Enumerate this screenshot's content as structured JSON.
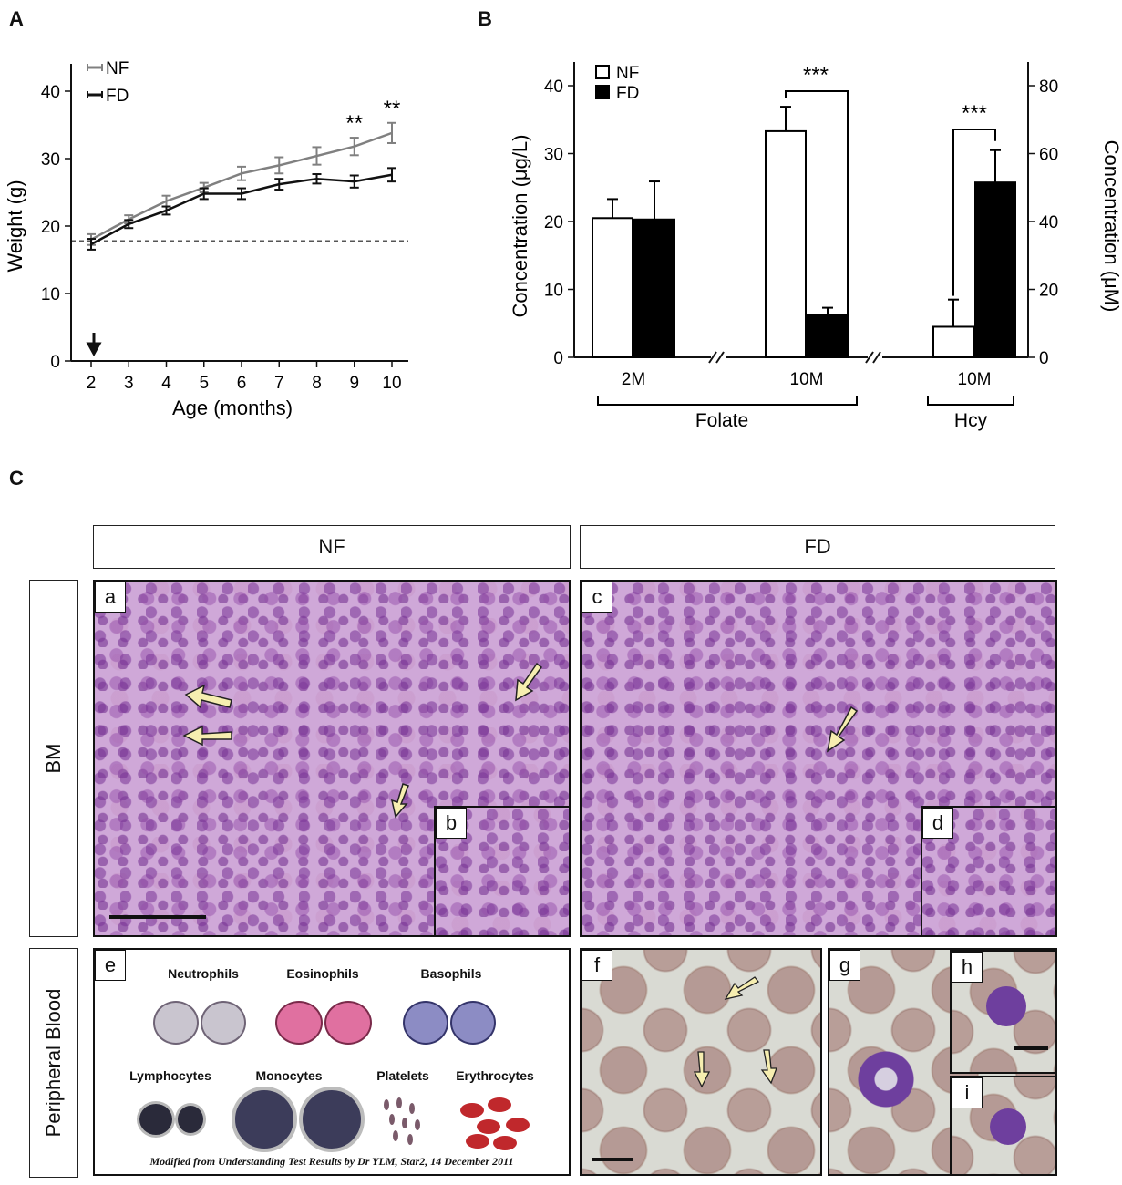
{
  "panels": {
    "A": "A",
    "B": "B",
    "C": "C"
  },
  "chart_data": [
    {
      "type": "line",
      "xlabel": "Age (months)",
      "ylabel": "Weight (g)",
      "x": [
        2,
        3,
        4,
        5,
        6,
        7,
        8,
        9,
        10
      ],
      "xlim": [
        2,
        10
      ],
      "ylim": [
        0,
        40
      ],
      "xticks": [
        "2",
        "3",
        "4",
        "5",
        "6",
        "7",
        "8",
        "9",
        "10"
      ],
      "yticks": [
        "0",
        "10",
        "20",
        "30",
        "40"
      ],
      "baseline": 17.8,
      "series": [
        {
          "name": "NF",
          "color": "#808080",
          "values": [
            18.0,
            21.0,
            23.7,
            25.7,
            27.8,
            29.0,
            30.4,
            31.8,
            33.8
          ],
          "errors": [
            0.8,
            0.6,
            0.8,
            0.7,
            1.0,
            1.2,
            1.3,
            1.3,
            1.5
          ]
        },
        {
          "name": "FD",
          "color": "#111111",
          "values": [
            17.3,
            20.3,
            22.3,
            24.8,
            24.8,
            26.2,
            27.0,
            26.6,
            27.6
          ],
          "errors": [
            0.8,
            0.6,
            0.6,
            0.8,
            0.8,
            0.8,
            0.7,
            0.9,
            1.0
          ]
        }
      ],
      "annotations": [
        {
          "x": 9,
          "text": "**"
        },
        {
          "x": 10,
          "text": "**"
        }
      ]
    },
    {
      "type": "bar",
      "ylabel": "Concentration (μg/L)",
      "y2label": "Concentration (μM)",
      "ylim": [
        0,
        40
      ],
      "y2lim": [
        0,
        80
      ],
      "yticks": [
        "0",
        "10",
        "20",
        "30",
        "40"
      ],
      "y2ticks": [
        "0",
        "20",
        "40",
        "60",
        "80"
      ],
      "legend": [
        {
          "name": "NF",
          "color": "#ffffff"
        },
        {
          "name": "FD",
          "color": "#000000"
        }
      ],
      "groups": [
        {
          "label": "2M",
          "axis": "left",
          "NF": 20.5,
          "NF_err": 2.8,
          "FD": 20.3,
          "FD_err": 5.6
        },
        {
          "label": "10M",
          "axis": "left",
          "NF": 33.3,
          "NF_err": 3.6,
          "FD": 6.3,
          "FD_err": 1.0
        },
        {
          "label": "10M",
          "axis": "right",
          "NF": 9.0,
          "NF_err": 8.0,
          "FD": 51.5,
          "FD_err": 9.5
        }
      ],
      "brackets": [
        "Folate",
        "Hcy"
      ],
      "significance": "***"
    }
  ],
  "figC": {
    "col_nf": "NF",
    "col_fd": "FD",
    "row_bm": "BM",
    "row_pb": "Peripheral Blood",
    "tags": {
      "a": "a",
      "b": "b",
      "c": "c",
      "d": "d",
      "e": "e",
      "f": "f",
      "g": "g",
      "h": "h",
      "i": "i"
    },
    "cells": {
      "neutrophils": "Neutrophils",
      "eosinophils": "Eosinophils",
      "basophils": "Basophils",
      "lymphocytes": "Lymphocytes",
      "monocytes": "Monocytes",
      "platelets": "Platelets",
      "erythrocytes": "Erythrocytes"
    },
    "credit": "Modified from Understanding Test Results by Dr YLM, Star2, 14 December 2011"
  }
}
